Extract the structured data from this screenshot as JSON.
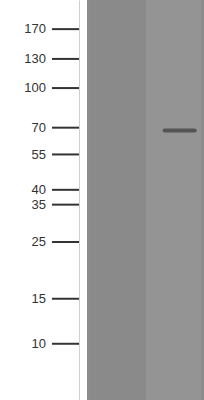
{
  "chart_data": {
    "type": "blot",
    "categories": [
      null,
      null
    ],
    "values": [
      null,
      68
    ],
    "log": "y",
    "ylim": [
      6,
      220
    ],
    "yticks": [
      170,
      130,
      100,
      70,
      55,
      40,
      35,
      25,
      15,
      10
    ],
    "tick_labels": "y",
    "color": "#4a4a4a"
  }
}
